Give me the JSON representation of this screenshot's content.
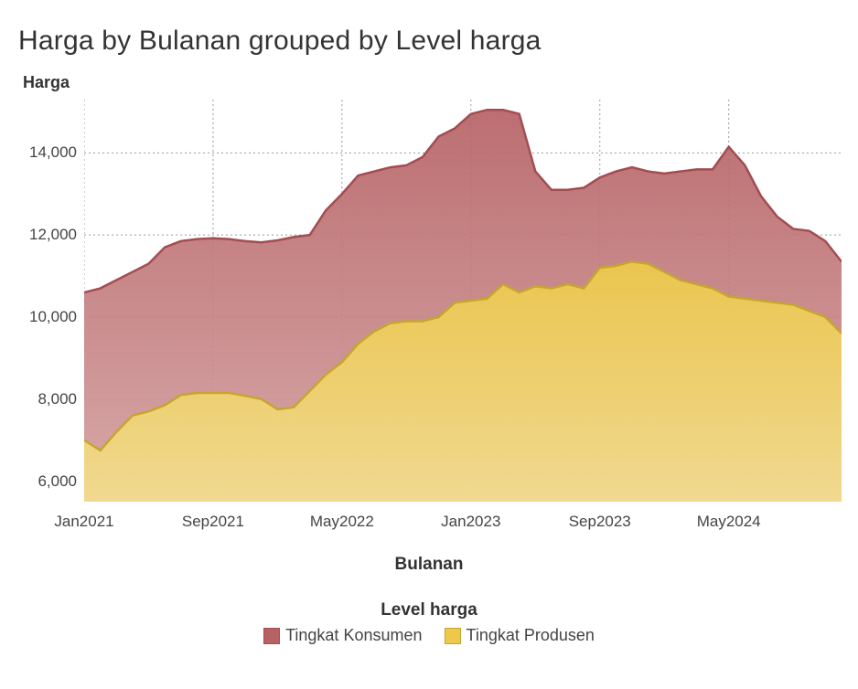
{
  "chart": {
    "type": "area",
    "title": "Harga by Bulanan grouped by Level harga",
    "title_fontsize": 30,
    "y_axis_label": "Harga",
    "x_axis_label": "Bulanan",
    "legend_title": "Level harga",
    "background_color": "#ffffff",
    "grid_color": "#9a9a9a",
    "grid_dash": "2 3",
    "y_axis": {
      "min": 5500,
      "max": 15300,
      "ticks": [
        6000,
        8000,
        10000,
        12000,
        14000
      ],
      "tick_labels": [
        "6,000",
        "8,000",
        "10,000",
        "12,000",
        "14,000"
      ],
      "label_fontsize": 18,
      "label_fontweight": 600,
      "tick_fontsize": 17
    },
    "x_axis": {
      "min": 0,
      "max": 47,
      "tick_positions": [
        0,
        8,
        16,
        24,
        32,
        40
      ],
      "tick_labels": [
        "Jan2021",
        "Sep2021",
        "May2022",
        "Jan2023",
        "Sep2023",
        "May2024"
      ],
      "label_fontsize": 19,
      "label_fontweight": 600,
      "tick_fontsize": 17
    },
    "series": [
      {
        "name": "Tingkat Konsumen",
        "stroke_color": "#a24d51",
        "stroke_width": 2.5,
        "fill_gradient_top": "#b66265",
        "fill_gradient_bottom": "#d4a1a1",
        "fill_opacity": 0.92,
        "values": [
          10600,
          10700,
          10900,
          11100,
          11300,
          11700,
          11850,
          11900,
          11920,
          11900,
          11850,
          11820,
          11870,
          11950,
          12000,
          12600,
          13000,
          13450,
          13550,
          13650,
          13700,
          13900,
          14400,
          14600,
          14950,
          15050,
          15050,
          14950,
          13550,
          13100,
          13100,
          13150,
          13400,
          13550,
          13650,
          13550,
          13500,
          13550,
          13600,
          13600,
          14150,
          13700,
          12950,
          12450,
          12150,
          12100,
          11850,
          11350
        ]
      },
      {
        "name": "Tingkat Produsen",
        "stroke_color": "#c5a530",
        "stroke_width": 2.5,
        "fill_gradient_top": "#ecc94b",
        "fill_gradient_bottom": "#f2db8f",
        "fill_opacity": 0.95,
        "values": [
          7000,
          6750,
          7200,
          7600,
          7700,
          7850,
          8100,
          8150,
          8150,
          8150,
          8080,
          8000,
          7750,
          7800,
          8200,
          8600,
          8900,
          9350,
          9650,
          9850,
          9900,
          9900,
          10000,
          10350,
          10400,
          10450,
          10800,
          10600,
          10750,
          10700,
          10800,
          10700,
          11200,
          11250,
          11350,
          11300,
          11100,
          10900,
          10800,
          10700,
          10500,
          10450,
          10400,
          10350,
          10300,
          10150,
          10000,
          9600
        ]
      }
    ],
    "n_points": 48
  }
}
